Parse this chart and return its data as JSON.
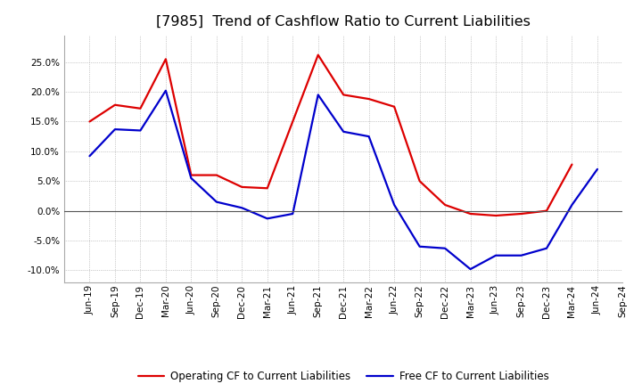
{
  "title": "[7985]  Trend of Cashflow Ratio to Current Liabilities",
  "x_labels": [
    "Jun-19",
    "Sep-19",
    "Dec-19",
    "Mar-20",
    "Jun-20",
    "Sep-20",
    "Dec-20",
    "Mar-21",
    "Jun-21",
    "Sep-21",
    "Dec-21",
    "Mar-22",
    "Jun-22",
    "Sep-22",
    "Dec-22",
    "Mar-23",
    "Jun-23",
    "Sep-23",
    "Dec-23",
    "Mar-24",
    "Jun-24",
    "Sep-24"
  ],
  "op_cf": [
    0.15,
    0.178,
    0.172,
    0.255,
    0.06,
    0.06,
    0.04,
    0.038,
    0.15,
    0.262,
    0.195,
    0.188,
    0.175,
    0.05,
    0.01,
    -0.005,
    -0.008,
    -0.005,
    0.0,
    0.078,
    null,
    null
  ],
  "free_cf": [
    0.092,
    0.137,
    0.135,
    0.202,
    0.055,
    0.015,
    0.005,
    -0.013,
    -0.005,
    0.195,
    0.133,
    0.125,
    0.01,
    -0.06,
    -0.063,
    -0.098,
    -0.075,
    -0.075,
    -0.063,
    0.01,
    0.07,
    null
  ],
  "ylim": [
    -0.12,
    0.295
  ],
  "yticks": [
    -0.1,
    -0.05,
    0.0,
    0.05,
    0.1,
    0.15,
    0.2,
    0.25
  ],
  "legend_labels": [
    "Operating CF to Current Liabilities",
    "Free CF to Current Liabilities"
  ],
  "operating_color": "#dd0000",
  "free_color": "#0000cc",
  "background_color": "#ffffff",
  "grid_color": "#888888",
  "title_fontsize": 11.5,
  "tick_fontsize": 7.5
}
